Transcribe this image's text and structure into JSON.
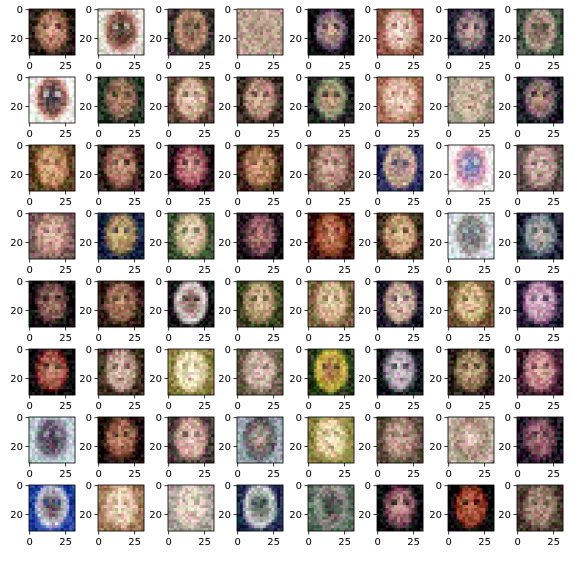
{
  "chart_data": {
    "type": "image_grid",
    "rows": 8,
    "cols": 8,
    "image_shape": [
      32,
      32
    ],
    "x_ticks": [
      0,
      25
    ],
    "y_ticks": [
      0,
      20
    ],
    "x_tick_labels": [
      "0",
      "25"
    ],
    "y_tick_labels": [
      "0",
      "20"
    ],
    "tile_palettes": [
      [
        "#2a1a14",
        "#8a5a44",
        "#d9a98c"
      ],
      [
        "#e6dcd4",
        "#b07866",
        "#3a2a24"
      ],
      [
        "#3a3030",
        "#c49a7a",
        "#7a5a4c"
      ],
      [
        "#b49c8c",
        "#c8ac98",
        "#9a8070"
      ],
      [
        "#050505",
        "#5a4a6a",
        "#d8b090"
      ],
      [
        "#8a5040",
        "#d0a090",
        "#f0e0d8"
      ],
      [
        "#1a1a2a",
        "#6a5a6a",
        "#c8a898"
      ],
      [
        "#3a4a3a",
        "#c8b0a0",
        "#6a5048"
      ],
      [
        "#f0f0e8",
        "#c08070",
        "#2a2a40"
      ],
      [
        "#203020",
        "#7a6050",
        "#c09070"
      ],
      [
        "#5a4034",
        "#c8a084",
        "#e8d0c0"
      ],
      [
        "#3a2a24",
        "#a07868",
        "#d8b8a0"
      ],
      [
        "#1a1a1a",
        "#7a8a6a",
        "#d0a080"
      ],
      [
        "#a06850",
        "#d8b098",
        "#f0d8c8"
      ],
      [
        "#9a9080",
        "#d0c0a8",
        "#b8a088"
      ],
      [
        "#1a1a24",
        "#6a5a6a",
        "#c89880"
      ],
      [
        "#5a4020",
        "#b08050",
        "#e0b890"
      ],
      [
        "#2a1a14",
        "#8a5848",
        "#d0a088"
      ],
      [
        "#1a0a10",
        "#8a3a4a",
        "#e0b0a0"
      ],
      [
        "#3a2014",
        "#9a6a4a",
        "#d8a880"
      ],
      [
        "#6a4a40",
        "#b08878",
        "#d0b0a0"
      ],
      [
        "#2a2a5a",
        "#e0c0a0",
        "#8a6a7a"
      ],
      [
        "#f8f0f0",
        "#e0a0a8",
        "#6a80c0"
      ],
      [
        "#5a4a4a",
        "#b09088",
        "#d8c0b8"
      ],
      [
        "#7a5a5a",
        "#b88878",
        "#d8b8a8"
      ],
      [
        "#102040",
        "#8a7050",
        "#d8c080"
      ],
      [
        "#3a5030",
        "#c0a880",
        "#e8d8c0"
      ],
      [
        "#1a1018",
        "#6a4050",
        "#c08878"
      ],
      [
        "#3a1008",
        "#8a3a20",
        "#d89878"
      ],
      [
        "#3a2a1a",
        "#b08a60",
        "#e0c098"
      ],
      [
        "#d8e0e8",
        "#a8a098",
        "#6a7080"
      ],
      [
        "#1a2030",
        "#6a7a8a",
        "#d0c0b0"
      ],
      [
        "#0a0608",
        "#5a3a3a",
        "#b88878"
      ],
      [
        "#2a1810",
        "#7a5040",
        "#c89878"
      ],
      [
        "#101010",
        "#e8e0e0",
        "#8a6058"
      ],
      [
        "#3a4020",
        "#a08860",
        "#d8b898"
      ],
      [
        "#7a6040",
        "#c8a880",
        "#e8d0b0"
      ],
      [
        "#1a1428",
        "#b09080",
        "#e8d0c0"
      ],
      [
        "#6a5030",
        "#c0a070",
        "#e0c8a0"
      ],
      [
        "#2a1a3a",
        "#b080a0",
        "#e0c0d0"
      ],
      [
        "#050505",
        "#8a2a2a",
        "#d0a080"
      ],
      [
        "#3a2a1a",
        "#b09080",
        "#e0c8b8"
      ],
      [
        "#8a7a40",
        "#e0d0a0",
        "#f8f0d8"
      ],
      [
        "#6a5a4a",
        "#b8a090",
        "#d8c8b8"
      ],
      [
        "#2a3a1a",
        "#d0c040",
        "#a07050"
      ],
      [
        "#0a1018",
        "#8a8890",
        "#e0d0d8"
      ],
      [
        "#2a2018",
        "#8a7050",
        "#c8a888"
      ],
      [
        "#3a1a2a",
        "#b07080",
        "#e0b0a0"
      ],
      [
        "#c0d0d8",
        "#8a8898",
        "#3a3040"
      ],
      [
        "#1a0a08",
        "#7a4a38",
        "#c89070"
      ],
      [
        "#4a3a3a",
        "#c09888",
        "#e8c8c0"
      ],
      [
        "#9aa8b0",
        "#4a4850",
        "#c0a898"
      ],
      [
        "#8a8040",
        "#d0c080",
        "#f0e0c8"
      ],
      [
        "#5a4a3a",
        "#a08070",
        "#c8a898"
      ],
      [
        "#c0b0a0",
        "#9a7868",
        "#e8d8c8"
      ],
      [
        "#1a1020",
        "#6a4050",
        "#b08080"
      ],
      [
        "#2040a0",
        "#e0e0f0",
        "#3a2a30"
      ],
      [
        "#a07858",
        "#d8b898",
        "#f0dcc8"
      ],
      [
        "#a8a098",
        "#d0c0b0",
        "#e8d8c8"
      ],
      [
        "#203050",
        "#e8e8e8",
        "#3a4a40"
      ],
      [
        "#5a7060",
        "#a0a098",
        "#2a2a2a"
      ],
      [
        "#0a0a10",
        "#6a3a4a",
        "#d0a098"
      ],
      [
        "#000000",
        "#8a3020",
        "#c07050"
      ],
      [
        "#4a3a30",
        "#8a7060",
        "#b89888"
      ]
    ]
  }
}
